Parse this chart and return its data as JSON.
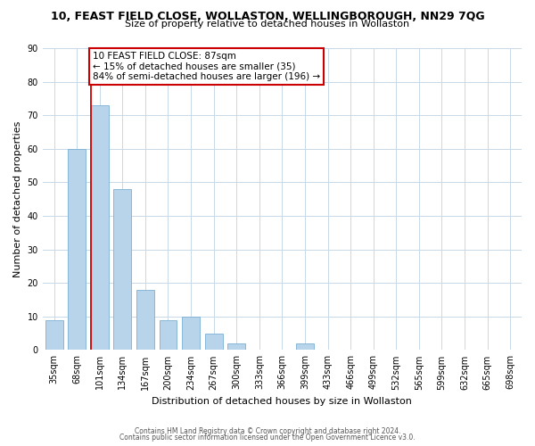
{
  "title": "10, FEAST FIELD CLOSE, WOLLASTON, WELLINGBOROUGH, NN29 7QG",
  "subtitle": "Size of property relative to detached houses in Wollaston",
  "xlabel": "Distribution of detached houses by size in Wollaston",
  "ylabel": "Number of detached properties",
  "bin_labels": [
    "35sqm",
    "68sqm",
    "101sqm",
    "134sqm",
    "167sqm",
    "200sqm",
    "234sqm",
    "267sqm",
    "300sqm",
    "333sqm",
    "366sqm",
    "399sqm",
    "433sqm",
    "466sqm",
    "499sqm",
    "532sqm",
    "565sqm",
    "599sqm",
    "632sqm",
    "665sqm",
    "698sqm"
  ],
  "bin_values": [
    9,
    60,
    73,
    48,
    18,
    9,
    10,
    5,
    2,
    0,
    0,
    2,
    0,
    0,
    0,
    0,
    0,
    0,
    0,
    0,
    0
  ],
  "bar_color": "#b8d4ea",
  "bar_edgecolor": "#7aafd4",
  "vline_x_index": 2,
  "annotation_title": "10 FEAST FIELD CLOSE: 87sqm",
  "annotation_line1": "← 15% of detached houses are smaller (35)",
  "annotation_line2": "84% of semi-detached houses are larger (196) →",
  "annotation_box_color": "#cc0000",
  "ylim": [
    0,
    90
  ],
  "yticks": [
    0,
    10,
    20,
    30,
    40,
    50,
    60,
    70,
    80,
    90
  ],
  "footer1": "Contains HM Land Registry data © Crown copyright and database right 2024.",
  "footer2": "Contains public sector information licensed under the Open Government Licence v3.0.",
  "background_color": "#ffffff",
  "grid_color": "#c8d8e8",
  "title_fontsize": 9,
  "subtitle_fontsize": 8,
  "xlabel_fontsize": 8,
  "ylabel_fontsize": 8,
  "tick_fontsize": 7,
  "footer_fontsize": 5.5,
  "annotation_fontsize": 7.5
}
